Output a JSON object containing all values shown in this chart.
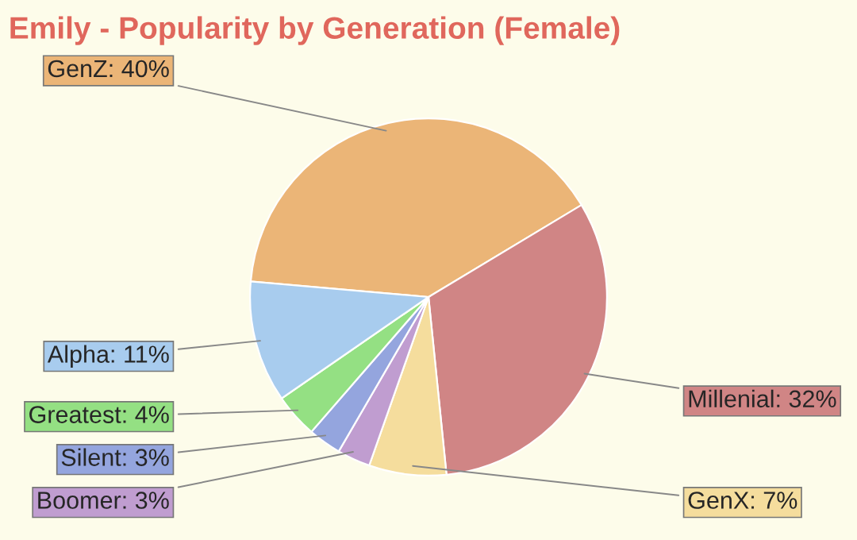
{
  "chart_data": {
    "type": "pie",
    "title": "Emily - Popularity by Generation (Female)",
    "categories": [
      "GenZ: 40%",
      "Millenial: 32%",
      "GenX: 7%",
      "Boomer: 3%",
      "Silent: 3%",
      "Greatest: 4%",
      "Alpha: 11%"
    ],
    "values": [
      40,
      32,
      7,
      3,
      3,
      4,
      11
    ],
    "colors": [
      "#ebb577",
      "#d08585",
      "#f5dd9d",
      "#c09dd0",
      "#94a5de",
      "#94e083",
      "#a8ccee"
    ]
  }
}
